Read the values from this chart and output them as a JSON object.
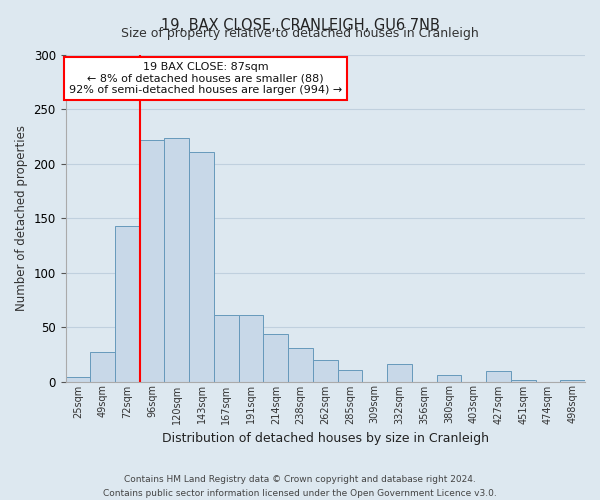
{
  "title": "19, BAX CLOSE, CRANLEIGH, GU6 7NB",
  "subtitle": "Size of property relative to detached houses in Cranleigh",
  "xlabel": "Distribution of detached houses by size in Cranleigh",
  "ylabel": "Number of detached properties",
  "bin_labels": [
    "25sqm",
    "49sqm",
    "72sqm",
    "96sqm",
    "120sqm",
    "143sqm",
    "167sqm",
    "191sqm",
    "214sqm",
    "238sqm",
    "262sqm",
    "285sqm",
    "309sqm",
    "332sqm",
    "356sqm",
    "380sqm",
    "403sqm",
    "427sqm",
    "451sqm",
    "474sqm",
    "498sqm"
  ],
  "bar_values": [
    4,
    27,
    143,
    222,
    224,
    211,
    61,
    61,
    44,
    31,
    20,
    11,
    0,
    16,
    0,
    6,
    0,
    10,
    1,
    0,
    1
  ],
  "bar_color": "#c8d8e8",
  "bar_edge_color": "#6699bb",
  "vline_color": "red",
  "ylim": [
    0,
    300
  ],
  "yticks": [
    0,
    50,
    100,
    150,
    200,
    250,
    300
  ],
  "annotation_title": "19 BAX CLOSE: 87sqm",
  "annotation_line1": "← 8% of detached houses are smaller (88)",
  "annotation_line2": "92% of semi-detached houses are larger (994) →",
  "annotation_box_color": "#ffffff",
  "annotation_box_edge_color": "red",
  "footer_line1": "Contains HM Land Registry data © Crown copyright and database right 2024.",
  "footer_line2": "Contains public sector information licensed under the Open Government Licence v3.0.",
  "background_color": "#dde8f0",
  "plot_background_color": "#dde8f0",
  "grid_color": "#c0d0de"
}
